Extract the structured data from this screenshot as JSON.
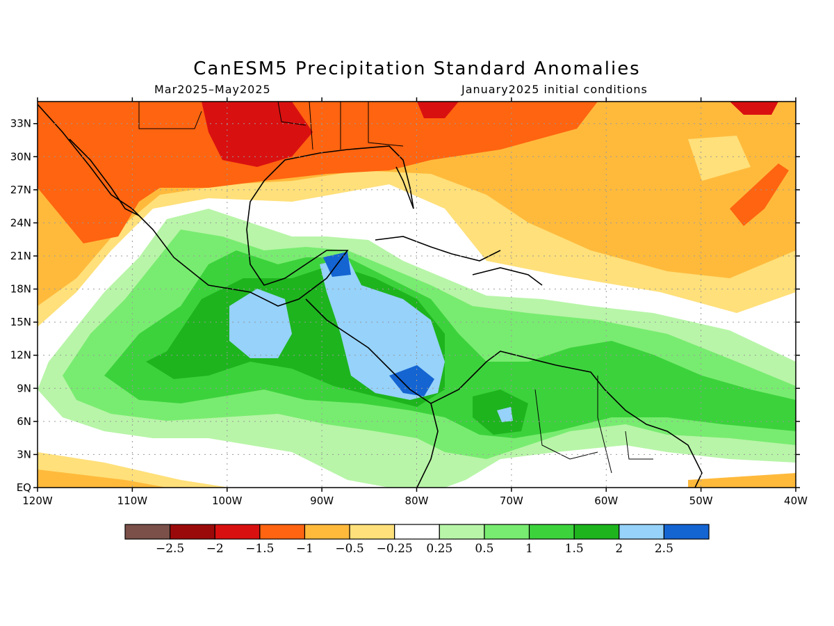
{
  "title": "CanESM5 Precipitation Standard Anomalies",
  "period": "Mar2025–May2025",
  "init": "January2025 initial conditions",
  "lat_labels": [
    "33N",
    "30N",
    "27N",
    "24N",
    "21N",
    "18N",
    "15N",
    "12N",
    "9N",
    "6N",
    "3N",
    "EQ"
  ],
  "lon_labels": [
    "120W",
    "110W",
    "100W",
    "90W",
    "80W",
    "70W",
    "60W",
    "50W",
    "40W"
  ],
  "colorbar": {
    "colors": [
      "#7a5048",
      "#9b0a0a",
      "#d91010",
      "#ff6410",
      "#ffba3c",
      "#ffe07a",
      "#ffffff",
      "#b8f5a8",
      "#78ec70",
      "#3cd23c",
      "#1eb41e",
      "#96d2fa",
      "#1464d2"
    ],
    "labels": [
      "−2.5",
      "−2",
      "−1.5",
      "−1",
      "−0.5",
      "−0.25",
      "0.25",
      "0.5",
      "1",
      "1.5",
      "2",
      "2.5"
    ]
  }
}
